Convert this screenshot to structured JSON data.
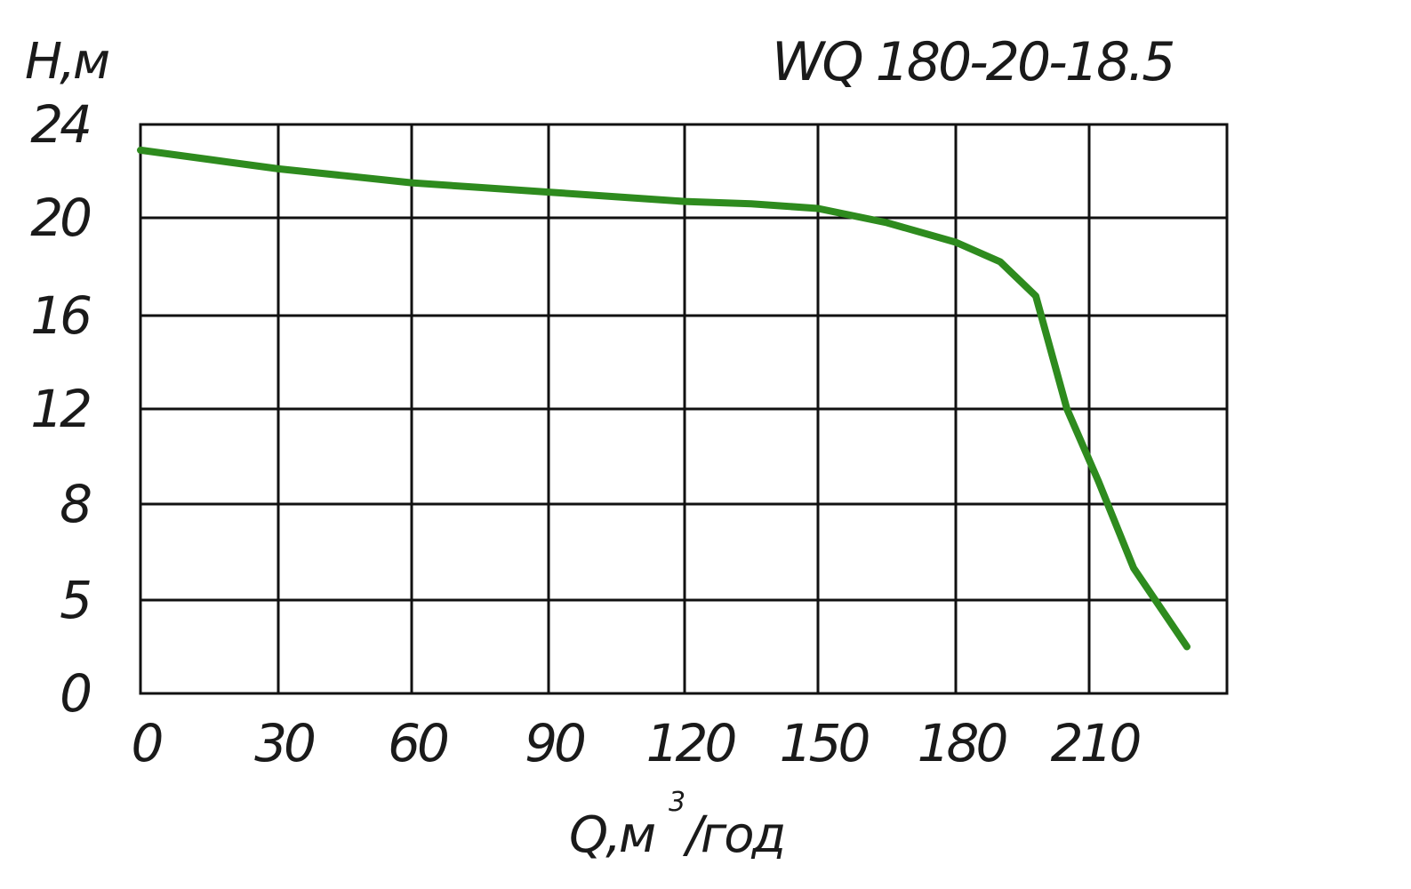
{
  "chart_data": {
    "type": "line",
    "title": "WQ 180-20-18.5",
    "ylabel": "H,м",
    "xlabel": "Q,м",
    "xlabel_sup": "3",
    "xlabel_suffix": "/год",
    "x_ticks": [
      "0",
      "30",
      "60",
      "90",
      "120",
      "150",
      "180",
      "210"
    ],
    "y_ticks": [
      "0",
      "5",
      "8",
      "12",
      "16",
      "20",
      "24"
    ],
    "grid": true,
    "curve_color": "#2e8b1e",
    "series": [
      {
        "x": [
          0,
          15,
          30,
          45,
          60,
          75,
          90,
          105,
          120,
          135,
          150,
          165,
          180,
          190,
          198,
          205,
          212,
          220,
          232
        ],
        "y": [
          22.9,
          22.5,
          22.1,
          21.8,
          21.5,
          21.3,
          21.1,
          20.9,
          20.7,
          20.6,
          20.4,
          19.8,
          19.0,
          18.2,
          16.8,
          12.0,
          9.0,
          6.0,
          2.5
        ]
      }
    ]
  }
}
